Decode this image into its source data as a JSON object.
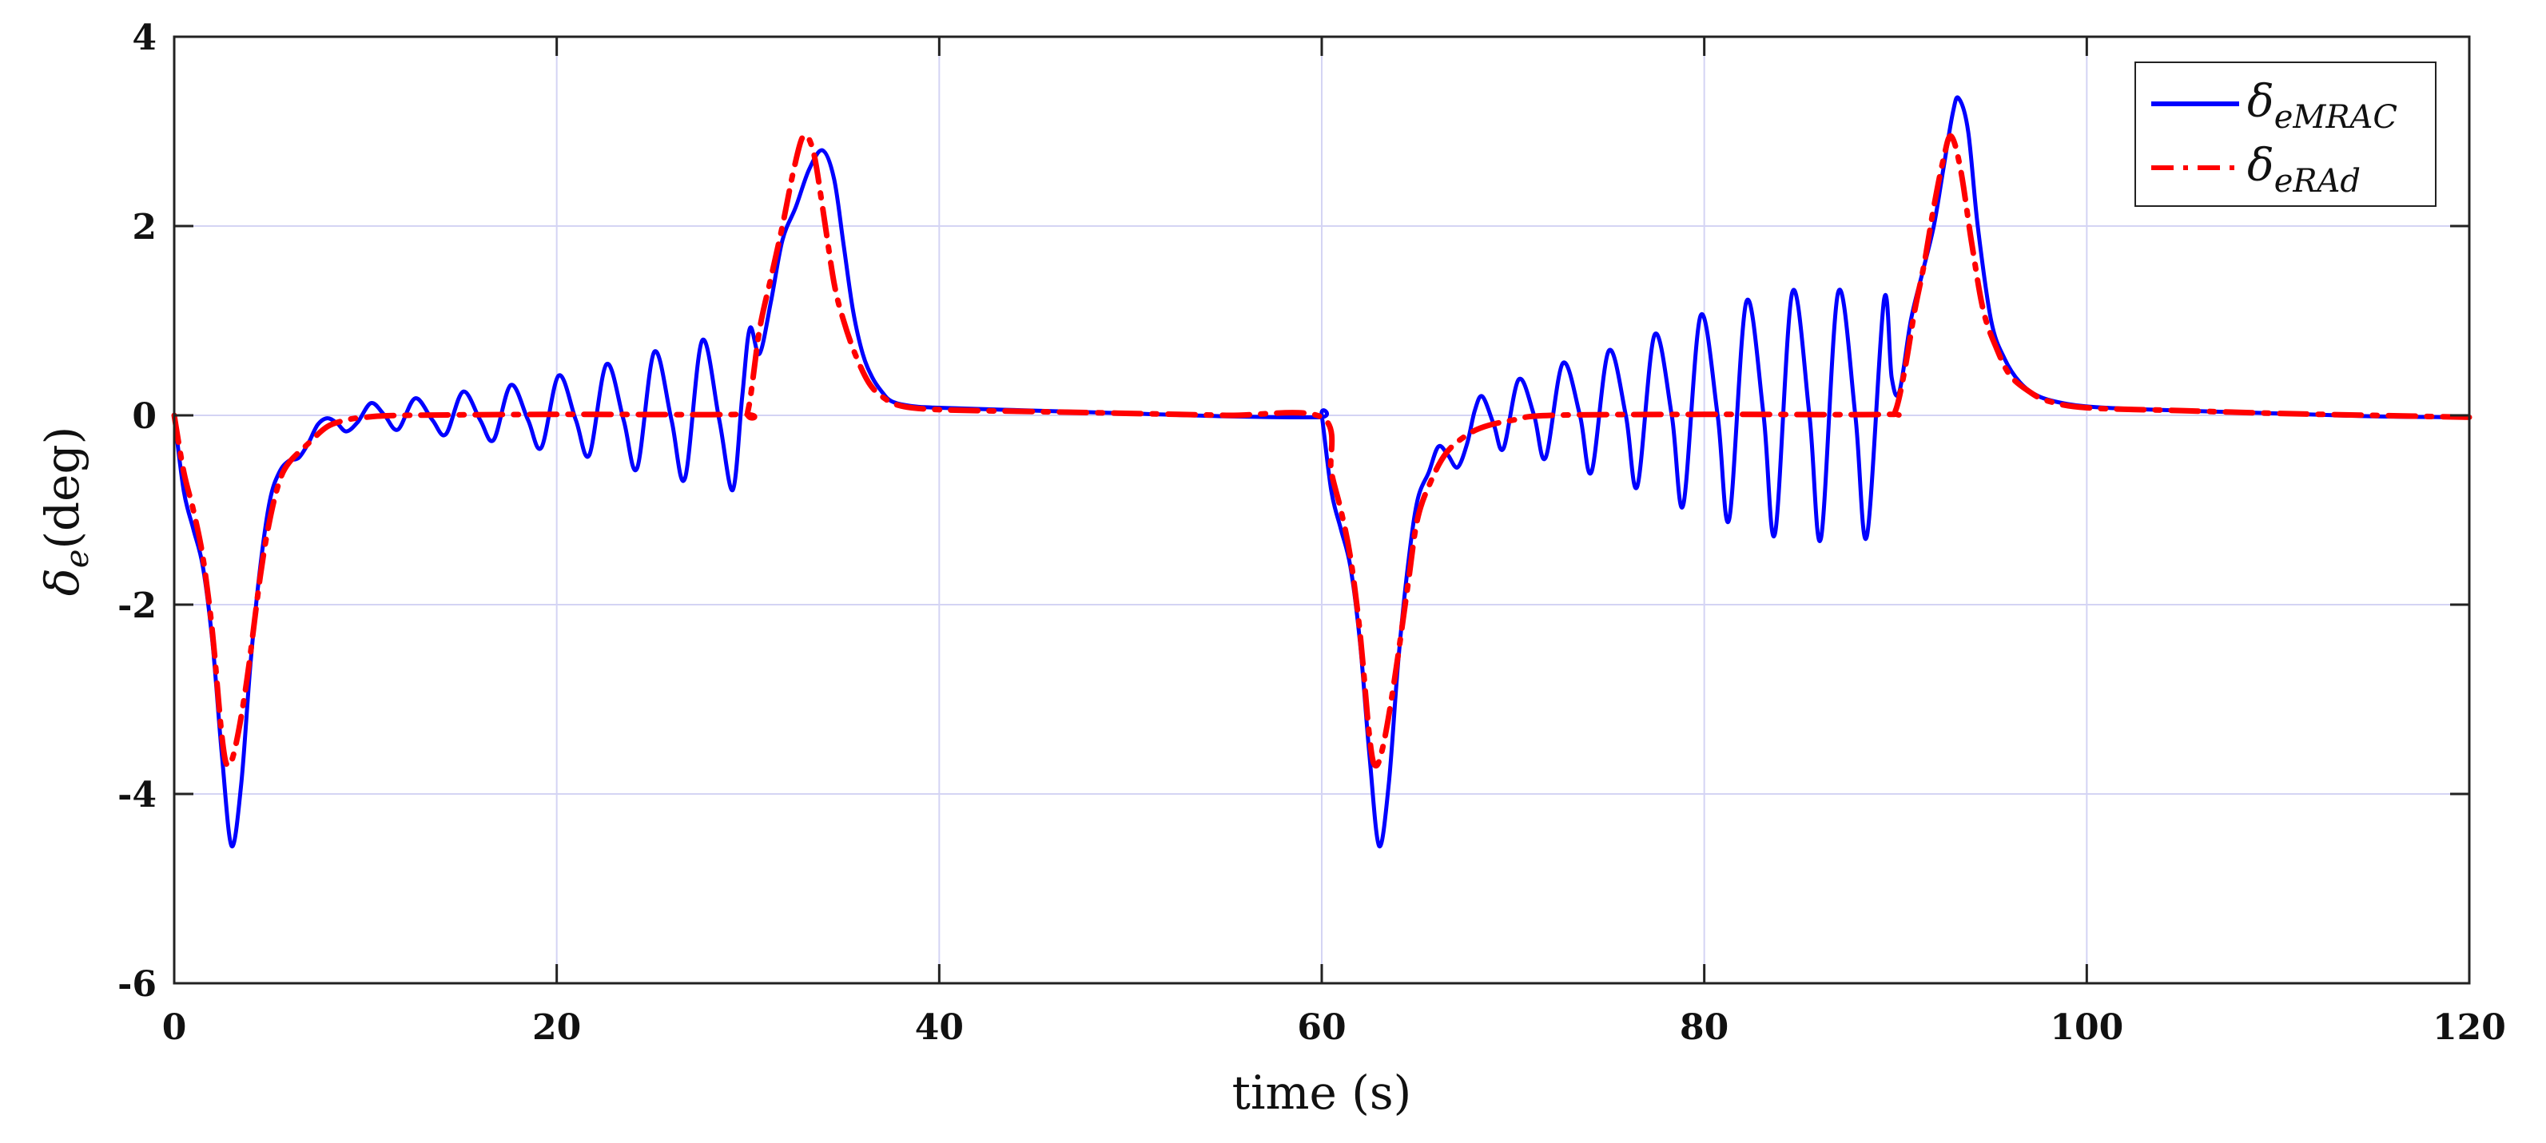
{
  "chart_data": {
    "type": "line",
    "xlabel": "time (s)",
    "ylabel_symbol": "δ",
    "ylabel_sub": "e",
    "ylabel_unit": "(deg)",
    "xlim": [
      0,
      120
    ],
    "ylim": [
      -6,
      4
    ],
    "xticks": [
      0,
      20,
      40,
      60,
      80,
      100,
      120
    ],
    "yticks": [
      4,
      2,
      0,
      -2,
      -4,
      -6
    ],
    "xtick_labels": [
      "0",
      "20",
      "40",
      "60",
      "80",
      "100",
      "120"
    ],
    "ytick_labels": [
      "4",
      "2",
      "0",
      "-2",
      "-4",
      "-6"
    ],
    "grid": true,
    "legend_position": "top-right",
    "series": [
      {
        "name": "δeMRAC",
        "legend_symbol": "δ",
        "legend_sub": "eMRAC",
        "color": "#0000ff",
        "style": "solid",
        "points": [
          [
            0,
            0
          ],
          [
            0.5,
            -0.8
          ],
          [
            1,
            -1.2
          ],
          [
            1.5,
            -1.6
          ],
          [
            2,
            -2.4
          ],
          [
            2.5,
            -3.6
          ],
          [
            3,
            -4.55
          ],
          [
            3.5,
            -3.9
          ],
          [
            4,
            -2.6
          ],
          [
            4.5,
            -1.6
          ],
          [
            5,
            -0.9
          ],
          [
            5.5,
            -0.6
          ],
          [
            6,
            -0.48
          ],
          [
            6.5,
            -0.45
          ],
          [
            7,
            -0.3
          ],
          [
            7.5,
            -0.1
          ],
          [
            8,
            -0.03
          ],
          [
            8.5,
            -0.08
          ],
          [
            9,
            -0.17
          ],
          [
            9.6,
            -0.07
          ],
          [
            10.3,
            0.13
          ],
          [
            11,
            0
          ],
          [
            11.7,
            -0.15
          ],
          [
            12.6,
            0.18
          ],
          [
            13.5,
            -0.05
          ],
          [
            14.2,
            -0.2
          ],
          [
            15.1,
            0.25
          ],
          [
            16,
            -0.05
          ],
          [
            16.7,
            -0.26
          ],
          [
            17.6,
            0.32
          ],
          [
            18.5,
            -0.05
          ],
          [
            19.2,
            -0.34
          ],
          [
            20.1,
            0.42
          ],
          [
            21,
            -0.05
          ],
          [
            21.7,
            -0.42
          ],
          [
            22.6,
            0.54
          ],
          [
            23.5,
            -0.05
          ],
          [
            24.2,
            -0.56
          ],
          [
            25.1,
            0.67
          ],
          [
            26,
            -0.05
          ],
          [
            26.7,
            -0.67
          ],
          [
            27.6,
            0.79
          ],
          [
            28.5,
            -0.05
          ],
          [
            29.2,
            -0.79
          ],
          [
            29.7,
            0.2
          ],
          [
            30.1,
            0.92
          ],
          [
            30.6,
            0.65
          ],
          [
            31.2,
            1.2
          ],
          [
            31.8,
            1.85
          ],
          [
            32.5,
            2.2
          ],
          [
            33.2,
            2.6
          ],
          [
            33.9,
            2.8
          ],
          [
            34.5,
            2.5
          ],
          [
            35,
            1.8
          ],
          [
            35.5,
            1.1
          ],
          [
            36,
            0.65
          ],
          [
            36.5,
            0.4
          ],
          [
            37,
            0.25
          ],
          [
            37.5,
            0.15
          ],
          [
            38.5,
            0.1
          ],
          [
            40,
            0.08
          ],
          [
            45,
            0.05
          ],
          [
            50,
            0.02
          ],
          [
            55,
            -0.01
          ],
          [
            59.9,
            -0.02
          ],
          [
            60,
            0
          ],
          [
            60.5,
            -0.8
          ],
          [
            61,
            -1.2
          ],
          [
            61.5,
            -1.6
          ],
          [
            62,
            -2.4
          ],
          [
            62.5,
            -3.6
          ],
          [
            63,
            -4.55
          ],
          [
            63.5,
            -3.9
          ],
          [
            64,
            -2.6
          ],
          [
            64.5,
            -1.6
          ],
          [
            65,
            -0.9
          ],
          [
            65.6,
            -0.6
          ],
          [
            66.1,
            -0.33
          ],
          [
            66.6,
            -0.42
          ],
          [
            67.1,
            -0.55
          ],
          [
            67.6,
            -0.3
          ],
          [
            68,
            0.05
          ],
          [
            68.4,
            0.2
          ],
          [
            69,
            -0.1
          ],
          [
            69.5,
            -0.35
          ],
          [
            70.3,
            0.38
          ],
          [
            71.1,
            0
          ],
          [
            71.7,
            -0.45
          ],
          [
            72.6,
            0.55
          ],
          [
            73.5,
            0
          ],
          [
            74.1,
            -0.6
          ],
          [
            75,
            0.68
          ],
          [
            75.9,
            0
          ],
          [
            76.5,
            -0.75
          ],
          [
            77.4,
            0.85
          ],
          [
            78.3,
            0
          ],
          [
            78.9,
            -0.95
          ],
          [
            79.8,
            1.05
          ],
          [
            80.7,
            0
          ],
          [
            81.3,
            -1.1
          ],
          [
            82.2,
            1.2
          ],
          [
            83.1,
            0
          ],
          [
            83.7,
            -1.25
          ],
          [
            84.6,
            1.3
          ],
          [
            85.5,
            0
          ],
          [
            86.1,
            -1.3
          ],
          [
            87,
            1.3
          ],
          [
            87.9,
            0
          ],
          [
            88.5,
            -1.28
          ],
          [
            89.4,
            1.22
          ],
          [
            89.8,
            0.4
          ],
          [
            90.2,
            0.25
          ],
          [
            90.8,
            1.0
          ],
          [
            91.4,
            1.5
          ],
          [
            92,
            2.0
          ],
          [
            92.5,
            2.6
          ],
          [
            93,
            3.2
          ],
          [
            93.3,
            3.35
          ],
          [
            93.8,
            3.0
          ],
          [
            94.3,
            2.0
          ],
          [
            95,
            1.0
          ],
          [
            95.7,
            0.6
          ],
          [
            96.5,
            0.35
          ],
          [
            97.5,
            0.2
          ],
          [
            99,
            0.12
          ],
          [
            101,
            0.08
          ],
          [
            105,
            0.05
          ],
          [
            110,
            0.02
          ],
          [
            115,
            -0.01
          ],
          [
            120,
            -0.02
          ]
        ]
      },
      {
        "name": "δeRAd",
        "legend_symbol": "δ",
        "legend_sub": "eRAd",
        "color": "#ff0000",
        "style": "dashdot",
        "points": [
          [
            0,
            0
          ],
          [
            0.5,
            -0.6
          ],
          [
            1,
            -1.0
          ],
          [
            1.5,
            -1.5
          ],
          [
            2,
            -2.3
          ],
          [
            2.5,
            -3.4
          ],
          [
            2.8,
            -3.7
          ],
          [
            3.2,
            -3.5
          ],
          [
            3.8,
            -2.8
          ],
          [
            4.5,
            -1.7
          ],
          [
            5,
            -1.1
          ],
          [
            5.5,
            -0.7
          ],
          [
            6,
            -0.5
          ],
          [
            7,
            -0.3
          ],
          [
            8,
            -0.12
          ],
          [
            9,
            -0.05
          ],
          [
            10,
            -0.02
          ],
          [
            12,
            0
          ],
          [
            20,
            0.01
          ],
          [
            29.5,
            0.01
          ],
          [
            30,
            0.05
          ],
          [
            30.6,
            0.9
          ],
          [
            31.2,
            1.45
          ],
          [
            31.8,
            2.0
          ],
          [
            32.4,
            2.6
          ],
          [
            32.9,
            2.95
          ],
          [
            33.4,
            2.8
          ],
          [
            33.9,
            2.2
          ],
          [
            34.5,
            1.4
          ],
          [
            35,
            1.0
          ],
          [
            35.6,
            0.65
          ],
          [
            36.3,
            0.35
          ],
          [
            37,
            0.2
          ],
          [
            38,
            0.1
          ],
          [
            40,
            0.06
          ],
          [
            45,
            0.04
          ],
          [
            50,
            0.02
          ],
          [
            55,
            0
          ],
          [
            60,
            -0.02
          ],
          [
            60.5,
            -0.6
          ],
          [
            61,
            -1.0
          ],
          [
            61.5,
            -1.5
          ],
          [
            62,
            -2.3
          ],
          [
            62.5,
            -3.4
          ],
          [
            62.8,
            -3.7
          ],
          [
            63.2,
            -3.5
          ],
          [
            63.8,
            -2.8
          ],
          [
            64.5,
            -1.8
          ],
          [
            65,
            -1.1
          ],
          [
            65.7,
            -0.7
          ],
          [
            66.5,
            -0.4
          ],
          [
            67.5,
            -0.22
          ],
          [
            68.5,
            -0.12
          ],
          [
            70,
            -0.05
          ],
          [
            72,
            0
          ],
          [
            80,
            0.01
          ],
          [
            89.5,
            0.01
          ],
          [
            90,
            0.05
          ],
          [
            90.5,
            0.5
          ],
          [
            91,
            1.1
          ],
          [
            91.5,
            1.6
          ],
          [
            92,
            2.2
          ],
          [
            92.5,
            2.7
          ],
          [
            92.9,
            2.95
          ],
          [
            93.4,
            2.6
          ],
          [
            94,
            1.8
          ],
          [
            94.6,
            1.1
          ],
          [
            95.3,
            0.7
          ],
          [
            96,
            0.42
          ],
          [
            97,
            0.25
          ],
          [
            98,
            0.15
          ],
          [
            100,
            0.08
          ],
          [
            105,
            0.05
          ],
          [
            110,
            0.02
          ],
          [
            115,
            0
          ],
          [
            120,
            -0.02
          ]
        ]
      }
    ]
  }
}
